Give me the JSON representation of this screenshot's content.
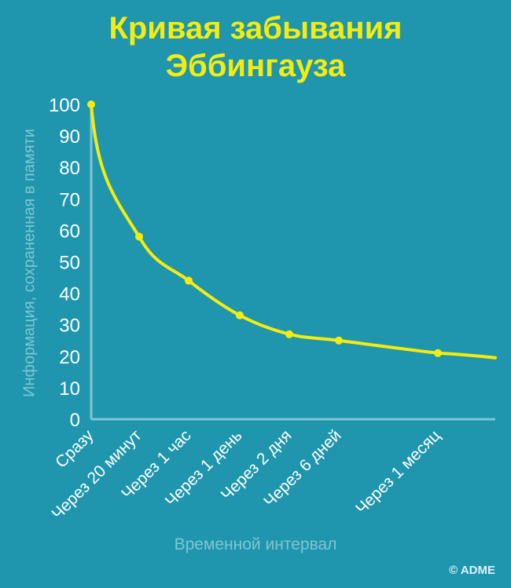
{
  "title_line1": "Кривая забывания",
  "title_line2": "Эббингауза",
  "credit": "© ADME",
  "colors": {
    "background": "#1f96ae",
    "curve": "#f5ec0f",
    "axis": "#7fc5d3",
    "tick_text": "#ffffff",
    "title": "#f5ec0f"
  },
  "chart_data": {
    "type": "line",
    "title": "Кривая забывания Эббингауза",
    "xlabel": "Временной интервал",
    "ylabel": "Информация, сохраненная в памяти",
    "ylim": [
      0,
      100
    ],
    "yticks": [
      0,
      10,
      20,
      30,
      40,
      50,
      60,
      70,
      80,
      90,
      100
    ],
    "grid": false,
    "categories": [
      "Сразу",
      "Через 20 минут",
      "Через 1 час",
      "Через 1 день",
      "Через 2 дня",
      "Через 6 дней",
      "Через 1 месяц"
    ],
    "series": [
      {
        "values": [
          100,
          58,
          44,
          33,
          27,
          25,
          21
        ]
      }
    ]
  }
}
